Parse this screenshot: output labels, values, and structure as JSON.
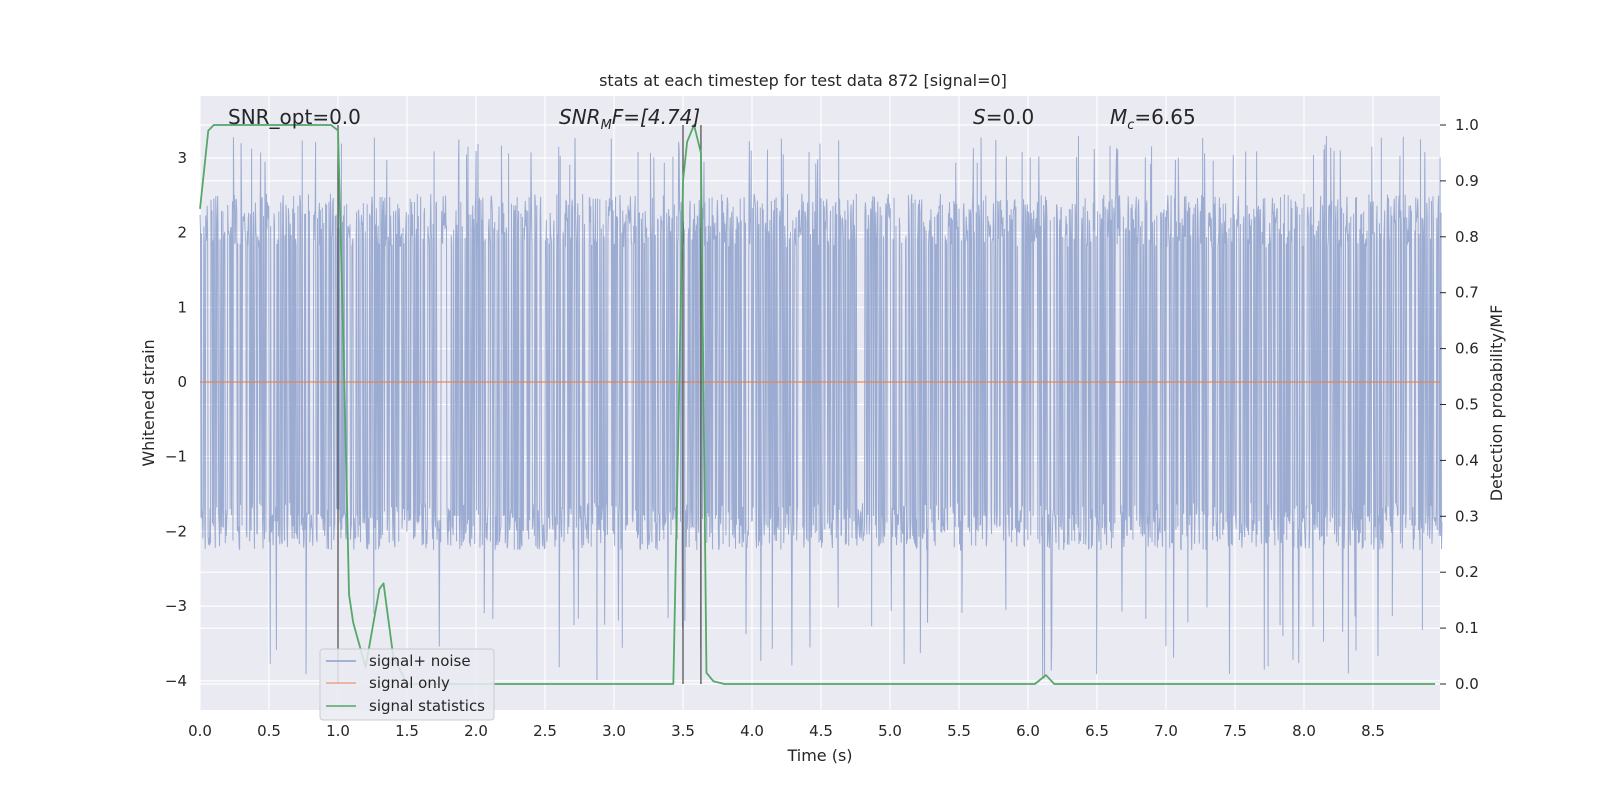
{
  "chart_data": {
    "type": "line",
    "title": "stats at each timestep for test data 872 [signal=0]",
    "xlabel": "Time (s)",
    "ylabel_left": "Whitened strain",
    "ylabel_right": "Detection probability/MF",
    "xlim": [
      0,
      9.0
    ],
    "ylim_left": [
      -4.35,
      3.85
    ],
    "ylim_right": [
      -0.05,
      1.05
    ],
    "x_ticks": [
      0.0,
      0.5,
      1.0,
      1.5,
      2.0,
      2.5,
      3.0,
      3.5,
      4.0,
      4.5,
      5.0,
      5.5,
      6.0,
      6.5,
      7.0,
      7.5,
      8.0,
      8.5
    ],
    "x_tick_labels": [
      "0.0",
      "0.5",
      "1.0",
      "1.5",
      "2.0",
      "2.5",
      "3.0",
      "3.5",
      "4.0",
      "4.5",
      "5.0",
      "5.5",
      "6.0",
      "6.5",
      "7.0",
      "7.5",
      "8.0",
      "8.5"
    ],
    "y_left_ticks": [
      3,
      2,
      1,
      0,
      -1,
      -2,
      -3,
      -4
    ],
    "y_left_tick_labels": [
      "3",
      "2",
      "1",
      "0",
      "−1",
      "−2",
      "−3",
      "−4"
    ],
    "y_right_ticks": [
      1.0,
      0.9,
      0.8,
      0.7,
      0.6,
      0.5,
      0.4,
      0.3,
      0.2,
      0.1,
      0.0
    ],
    "y_right_tick_labels": [
      "1.0",
      "0.9",
      "0.8",
      "0.7",
      "0.6",
      "0.5",
      "0.4",
      "0.3",
      "0.2",
      "0.1",
      "0.0"
    ],
    "grid": true,
    "legend_position": "lower-left",
    "legend": [
      {
        "label": "signal+ noise",
        "color": "#8da0cb"
      },
      {
        "label": "signal only",
        "color": "#e8a587"
      },
      {
        "label": "signal statistics",
        "color": "#55a868"
      }
    ],
    "annotations": {
      "snr_opt": "SNR_opt=0.0",
      "snr_mf_main": "SNR",
      "snr_mf_sub": "M",
      "snr_mf_rest": "F=[4.74]",
      "s_var": "S",
      "s_rest": "=0.0",
      "mc_var": "M",
      "mc_sub": "c",
      "mc_rest": "=6.65"
    },
    "vertical_lines_x": [
      1.0,
      3.5,
      3.63
    ],
    "noise_series": {
      "name": "signal+ noise",
      "color": "#8da0cb",
      "typical_envelope": [
        -1.8,
        2.4
      ],
      "max_peak": 3.3,
      "min_trough": -4.0
    },
    "signal_only_series": {
      "name": "signal only",
      "color": "#dd8452",
      "value": 0
    },
    "statistics_series": {
      "name": "signal statistics",
      "color": "#55a868",
      "x": [
        0.0,
        0.03,
        0.06,
        0.1,
        0.2,
        0.5,
        0.95,
        1.0,
        1.04,
        1.08,
        1.11,
        1.2,
        1.25,
        1.3,
        1.33,
        1.4,
        1.5,
        3.43,
        3.47,
        3.5,
        3.53,
        3.58,
        3.63,
        3.67,
        3.72,
        3.8,
        6.05,
        6.13,
        6.19,
        6.3,
        8.95
      ],
      "y": [
        0.85,
        0.92,
        0.99,
        1.0,
        1.0,
        1.0,
        1.0,
        0.99,
        0.6,
        0.16,
        0.11,
        0.03,
        0.1,
        0.17,
        0.18,
        0.05,
        0.0,
        0.0,
        0.5,
        0.9,
        0.97,
        1.0,
        0.95,
        0.02,
        0.005,
        0.0,
        0.0,
        0.016,
        0.0,
        0.0,
        0.0
      ]
    }
  }
}
